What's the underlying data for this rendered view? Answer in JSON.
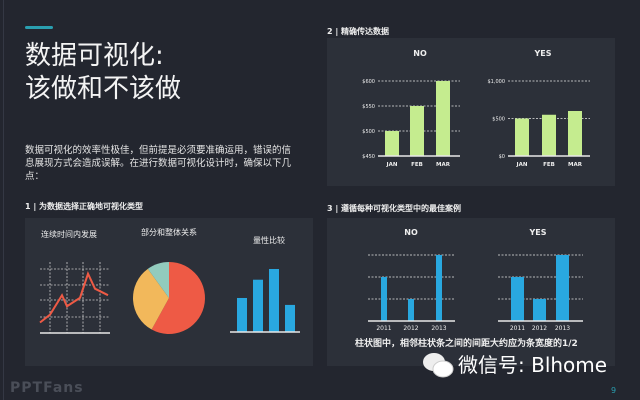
{
  "title_line1": "数据可视化:",
  "title_line2": "该做和不该做",
  "intro": "数据可视化的效率性极佳，但前提是必须要准确运用，错误的信息展现方式会造成误解。在进行数据可视化设计时，确保以下几点：",
  "sections": [
    {
      "label": "1 | 为数据选择正确地可视化类型"
    },
    {
      "label": "2 | 精确传达数据"
    },
    {
      "label": "3 | 遵循每种可视化类型中的最佳案例"
    }
  ],
  "caption": "柱状图中，相邻柱状条之间的间距大约应为条宽度的1/2",
  "watermark": "PPTFans",
  "wechat": "微信号: Blhome",
  "page_number": "9",
  "colors": {
    "accent": "#2a9fb0",
    "green": "#c5ec8f",
    "blue": "#29a8e0",
    "red": "#ee5a45",
    "orange": "#f2b85b",
    "teal": "#92cbbd"
  },
  "chart_data": [
    {
      "type": "line",
      "title": "连续时间内发展",
      "values": [
        10,
        22,
        52,
        35,
        48,
        85,
        62,
        52
      ],
      "grid": true
    },
    {
      "type": "pie",
      "title": "部分和整体关系",
      "slices": [
        58,
        32,
        10
      ],
      "slice_colors": [
        "#ee5a45",
        "#f2b85b",
        "#92cbbd"
      ]
    },
    {
      "type": "bar",
      "title": "量性比较",
      "values": [
        54,
        83,
        100,
        43
      ]
    },
    {
      "type": "bar",
      "title": "NO",
      "categories": [
        "JAN",
        "FEB",
        "MAR"
      ],
      "values": [
        500,
        550,
        600
      ],
      "ylim": [
        450,
        600
      ],
      "yticks": [
        "$450",
        "$500",
        "$550",
        "$600"
      ],
      "ytick_values": [
        450,
        500,
        550,
        600
      ],
      "grid": true
    },
    {
      "type": "bar",
      "title": "YES",
      "categories": [
        "JAN",
        "FEB",
        "MAR"
      ],
      "values": [
        500,
        550,
        600
      ],
      "ylim": [
        0,
        1000
      ],
      "yticks": [
        "$0",
        "$500",
        "$1,000"
      ],
      "ytick_values": [
        0,
        500,
        1000
      ],
      "grid": true
    },
    {
      "type": "bar",
      "title": "NO",
      "categories": [
        "2011",
        "2012",
        "2013"
      ],
      "values": [
        2,
        1,
        3
      ],
      "ylim": [
        0,
        3
      ],
      "grid": true,
      "bar_style": "thin"
    },
    {
      "type": "bar",
      "title": "YES",
      "categories": [
        "2011",
        "2012",
        "2013"
      ],
      "values": [
        2,
        1,
        3
      ],
      "ylim": [
        0,
        3
      ],
      "grid": true,
      "bar_style": "wide"
    }
  ]
}
